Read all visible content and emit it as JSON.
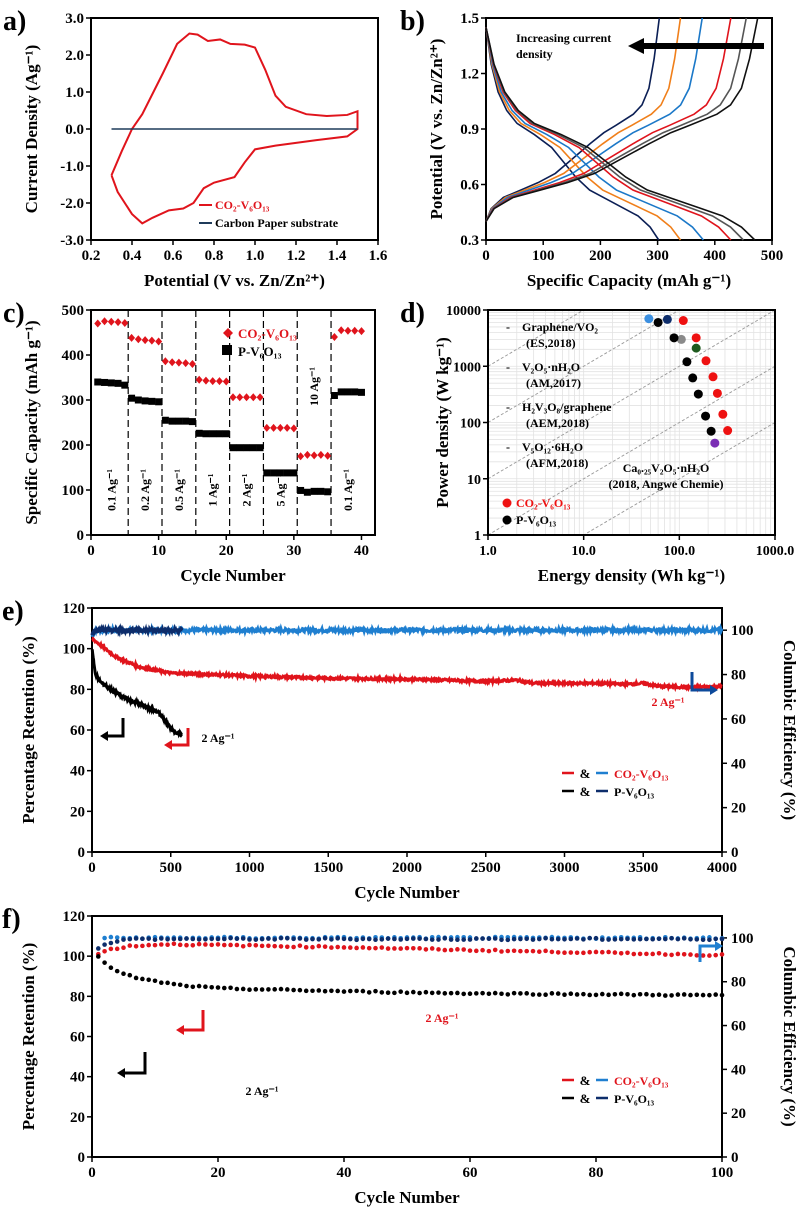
{
  "chart_data": [
    {
      "panel_label": "a)",
      "type": "line",
      "xlabel": "Potential (V vs. Zn/Zn²⁺)",
      "ylabel": "Current Density (Ag⁻¹)",
      "xlim": [
        0.2,
        1.6
      ],
      "ylim": [
        -3.0,
        3.0
      ],
      "xticks": [
        "0.2",
        "0.4",
        "0.6",
        "0.8",
        "1.0",
        "1.2",
        "1.4",
        "1.6"
      ],
      "yticks": [
        "-3.0",
        "-2.0",
        "-1.0",
        "0.0",
        "1.0",
        "2.0",
        "3.0"
      ],
      "series": [
        {
          "name": "CO₂-V₆O₁₃",
          "color": "#e0141c",
          "x": [
            0.3,
            0.35,
            0.4,
            0.45,
            0.55,
            0.62,
            0.68,
            0.72,
            0.77,
            0.83,
            0.88,
            0.95,
            1.0,
            1.05,
            1.1,
            1.15,
            1.25,
            1.35,
            1.45,
            1.5,
            1.5,
            1.45,
            1.3,
            1.1,
            1.0,
            0.95,
            0.9,
            0.8,
            0.75,
            0.7,
            0.65,
            0.58,
            0.5,
            0.45,
            0.4,
            0.33,
            0.3
          ],
          "y": [
            -1.25,
            -0.6,
            0.0,
            0.4,
            1.5,
            2.3,
            2.58,
            2.55,
            2.38,
            2.42,
            2.3,
            2.28,
            2.2,
            1.6,
            0.9,
            0.6,
            0.4,
            0.35,
            0.38,
            0.48,
            0.0,
            -0.2,
            -0.3,
            -0.45,
            -0.55,
            -0.9,
            -1.3,
            -1.45,
            -1.6,
            -2.0,
            -2.15,
            -2.2,
            -2.4,
            -2.55,
            -2.3,
            -1.7,
            -1.25
          ]
        },
        {
          "name": "Carbon Paper substrate",
          "color": "#1f3b5a",
          "x": [
            0.3,
            1.5
          ],
          "y": [
            0.0,
            0.0
          ]
        }
      ]
    },
    {
      "panel_label": "b)",
      "type": "line",
      "xlabel": "Specific Capacity (mAh g⁻¹)",
      "ylabel": "Potential (V vs. Zn/Zn²⁺)",
      "xlim": [
        0,
        500
      ],
      "ylim": [
        0.3,
        1.5
      ],
      "xticks": [
        "0",
        "100",
        "200",
        "300",
        "400",
        "500"
      ],
      "yticks": [
        "0.3",
        "0.6",
        "0.9",
        "1.2",
        "1.5"
      ],
      "annotation": "Increasing current",
      "annotation2": "density",
      "charge_profile": {
        "fraction": [
          0,
          0.03,
          0.1,
          0.2,
          0.3,
          0.4,
          0.5,
          0.6,
          0.68,
          0.75,
          0.85,
          0.9,
          0.94,
          0.97,
          1
        ],
        "voltage": [
          0.4,
          0.47,
          0.53,
          0.57,
          0.61,
          0.66,
          0.74,
          0.82,
          0.88,
          0.92,
          0.98,
          1.03,
          1.12,
          1.28,
          1.5
        ]
      },
      "discharge_profile": {
        "fraction": [
          0,
          0.03,
          0.07,
          0.12,
          0.18,
          0.28,
          0.38,
          0.45,
          0.52,
          0.6,
          0.7,
          0.8,
          0.88,
          0.95,
          1
        ],
        "voltage": [
          1.45,
          1.25,
          1.1,
          1.0,
          0.93,
          0.87,
          0.8,
          0.72,
          0.64,
          0.57,
          0.52,
          0.47,
          0.43,
          0.37,
          0.3
        ]
      },
      "series": [
        {
          "color": "#0b1f55",
          "charge_capacity": 303,
          "discharge_capacity": 302
        },
        {
          "color": "#f07f1a",
          "charge_capacity": 340,
          "discharge_capacity": 340
        },
        {
          "color": "#1b78c8",
          "charge_capacity": 378,
          "discharge_capacity": 380
        },
        {
          "color": "#e0141c",
          "charge_capacity": 428,
          "discharge_capacity": 428
        },
        {
          "color": "#555555",
          "charge_capacity": 455,
          "discharge_capacity": 450
        },
        {
          "color": "#111111",
          "charge_capacity": 475,
          "discharge_capacity": 470
        }
      ]
    },
    {
      "panel_label": "c)",
      "type": "scatter",
      "xlabel": "Cycle Number",
      "ylabel": "Specific Capacity (mAh g⁻¹)",
      "xlim": [
        0,
        42
      ],
      "ylim": [
        0,
        500
      ],
      "xticks": [
        "0",
        "10",
        "20",
        "30",
        "40"
      ],
      "yticks": [
        "0",
        "100",
        "200",
        "300",
        "400",
        "500"
      ],
      "rate_labels": [
        "0.1 Ag⁻¹",
        "0.2 Ag⁻¹",
        "0.5 Ag⁻¹",
        "1 Ag⁻¹",
        "2 Ag⁻¹",
        "5 Ag⁻¹",
        "10 Ag⁻¹",
        "0.1 Ag⁻¹"
      ],
      "dividers": [
        5.5,
        10.5,
        15.5,
        20.5,
        25.5,
        30.5,
        35.5
      ],
      "series": [
        {
          "name": "CO₂-V₆O₁₃",
          "color": "#e0141c",
          "marker": "diamond",
          "values": [
            470,
            475,
            474,
            473,
            471,
            438,
            435,
            433,
            432,
            430,
            386,
            384,
            383,
            382,
            380,
            345,
            343,
            342,
            342,
            341,
            306,
            306,
            306,
            306,
            306,
            238,
            238,
            238,
            238,
            237,
            175,
            178,
            177,
            178,
            176,
            440,
            455,
            454,
            454,
            453
          ]
        },
        {
          "name": "P-V₆O₁₃",
          "color": "#000000",
          "marker": "square",
          "values": [
            340,
            339,
            338,
            337,
            333,
            304,
            300,
            298,
            297,
            296,
            255,
            253,
            253,
            253,
            252,
            226,
            225,
            225,
            225,
            225,
            194,
            194,
            194,
            194,
            194,
            138,
            138,
            138,
            138,
            138,
            99,
            95,
            97,
            97,
            96,
            310,
            318,
            318,
            318,
            317
          ]
        }
      ]
    },
    {
      "panel_label": "d)",
      "type": "scatter",
      "xlabel": "Energy density (Wh kg⁻¹)",
      "ylabel": "Power density (W kg⁻¹)",
      "xscale": "log",
      "yscale": "log",
      "xlim": [
        1,
        1000
      ],
      "ylim": [
        1,
        10000
      ],
      "xticks": [
        "1.0",
        "10.0",
        "100.0",
        "1000.0"
      ],
      "yticks": [
        "1",
        "10",
        "100",
        "1000",
        "10000"
      ],
      "reference_ratios": [
        1000,
        100,
        10,
        1,
        0.1
      ],
      "literature_labels": [
        {
          "dash": "-",
          "name": "Graphene/VO₂",
          "ref": "(ES,2018)"
        },
        {
          "dash": "-",
          "name": "V₂O₅·nH₂O",
          "ref": "(AM,2017)"
        },
        {
          "dash": "-",
          "name": "H₂V₃O₈/graphene",
          "ref": "(AEM,2018)"
        },
        {
          "dash": "-",
          "name": "V₅O₁₂·6H₂O",
          "ref": "(AFM,2018)"
        }
      ],
      "ca_label": "Ca₀.₂₅V₂O₅·nH₂O",
      "ca_ref": "(2018, Angwe Chemie)",
      "series": [
        {
          "name": "CO₂-V₆O₁₃",
          "color": "#ee1111",
          "energy": [
            110,
            150,
            190,
            225,
            250,
            285,
            320
          ],
          "power": [
            6500,
            3200,
            1250,
            650,
            330,
            140,
            72
          ]
        },
        {
          "name": "P-V₆O₁₃",
          "color": "#000000",
          "energy": [
            60,
            88,
            120,
            138,
            158,
            188,
            215
          ],
          "power": [
            6000,
            3200,
            1200,
            620,
            320,
            130,
            70
          ]
        }
      ],
      "literature_points": [
        {
          "color": "#3b8fe0",
          "energy": 48,
          "power": 7000
        },
        {
          "color": "#0d2d6b",
          "energy": 75,
          "power": 6800
        },
        {
          "color": "#8a8a8a",
          "energy": 105,
          "power": 3000
        },
        {
          "color": "#1e5a1e",
          "energy": 150,
          "power": 2100
        },
        {
          "color": "#7b2fb5",
          "energy": 235,
          "power": 43
        }
      ]
    },
    {
      "panel_label": "e)",
      "type": "line",
      "xlabel": "Cycle Number",
      "ylabel": "Percentage Retention (%)",
      "y2label": "Columbic Efficiency (%)",
      "xlim": [
        0,
        4000
      ],
      "ylim": [
        0,
        120
      ],
      "y2lim": [
        0,
        110
      ],
      "xticks": [
        "0",
        "500",
        "1000",
        "1500",
        "2000",
        "2500",
        "3000",
        "3500",
        "4000"
      ],
      "yticks": [
        "0",
        "20",
        "40",
        "60",
        "80",
        "100",
        "120"
      ],
      "y2ticks": [
        "0",
        "20",
        "40",
        "60",
        "80",
        "100"
      ],
      "annotation_red": "2 Ag⁻¹",
      "annotation_black": "2 Ag⁻¹",
      "legend": [
        {
          "amp": "&",
          "label": "CO₂-V₆O₁₃",
          "color1": "#e0141c",
          "color2": "#1f7fd0"
        },
        {
          "amp": "&",
          "label": "P-V₆O₁₃",
          "color1": "#000000",
          "color2": "#0d2d6b"
        }
      ],
      "series": [
        {
          "name": "CO₂-V₆O₁₃ CE",
          "axis": "right",
          "color": "#1f7fd0",
          "x": [
            0,
            20,
            4000
          ],
          "y": [
            97,
            100,
            100
          ]
        },
        {
          "name": "P-V₆O₁₃ CE",
          "axis": "right",
          "color": "#0d2d6b",
          "x": [
            0,
            20,
            570
          ],
          "y": [
            98,
            100,
            100
          ]
        },
        {
          "name": "CO₂-V₆O₁₃ retention",
          "axis": "left",
          "color": "#e0141c",
          "x": [
            0,
            50,
            150,
            300,
            500,
            700,
            1000,
            1500,
            2000,
            2500,
            2700,
            2800,
            3200,
            3400,
            3500,
            3600,
            3800,
            4000
          ],
          "y": [
            105,
            102,
            96,
            91,
            88,
            87.5,
            86.5,
            85.5,
            85,
            84,
            84.5,
            83,
            83,
            82.5,
            83,
            81.5,
            81,
            81.5
          ]
        },
        {
          "name": "P-V₆O₁₃ retention",
          "axis": "left",
          "color": "#000000",
          "x": [
            0,
            20,
            50,
            100,
            200,
            300,
            350,
            420,
            470,
            520,
            570
          ],
          "y": [
            100,
            88,
            84,
            81,
            76,
            73,
            71,
            69,
            64,
            59,
            58
          ]
        }
      ]
    },
    {
      "panel_label": "f)",
      "type": "scatter",
      "xlabel": "Cycle Number",
      "ylabel": "Percentage Retention (%)",
      "y2label": "Columbic Efficiency (%)",
      "xlim": [
        0,
        100
      ],
      "ylim": [
        0,
        120
      ],
      "y2lim": [
        0,
        110
      ],
      "xticks": [
        "0",
        "20",
        "40",
        "60",
        "80",
        "100"
      ],
      "yticks": [
        "0",
        "20",
        "40",
        "60",
        "80",
        "100",
        "120"
      ],
      "y2ticks": [
        "0",
        "20",
        "40",
        "60",
        "80",
        "100"
      ],
      "annotation_red": "2 Ag⁻¹",
      "annotation_black": "2 Ag⁻¹",
      "legend": [
        {
          "amp": "&",
          "label": "CO₂-V₆O₁₃",
          "color1": "#e0141c",
          "color2": "#1f7fd0"
        },
        {
          "amp": "&",
          "label": "P-V₆O₁₃",
          "color1": "#000000",
          "color2": "#0d2d6b"
        }
      ],
      "series": [
        {
          "name": "CO₂-V₆O₁₃ CE",
          "axis": "right",
          "color": "#1f7fd0",
          "x": [
            2,
            100
          ],
          "y": [
            100,
            100
          ]
        },
        {
          "name": "P-V₆O₁₃ CE",
          "axis": "right",
          "color": "#0d2d6b",
          "x": [
            1,
            3,
            6,
            100
          ],
          "y": [
            95.5,
            98,
            99.5,
            99.5
          ]
        },
        {
          "name": "CO₂-V₆O₁₃ retention",
          "axis": "left",
          "color": "#e0141c",
          "x": [
            1,
            3,
            6,
            12,
            20,
            40,
            60,
            80,
            100
          ],
          "y": [
            101,
            103.5,
            105,
            106,
            105.5,
            104.5,
            103,
            101.8,
            100.5
          ]
        },
        {
          "name": "P-V₆O₁₃ retention",
          "axis": "left",
          "color": "#000000",
          "x": [
            1,
            2,
            3,
            5,
            8,
            14,
            20,
            40,
            60,
            100
          ],
          "y": [
            100,
            97,
            94,
            91,
            88.5,
            85.5,
            84,
            82.5,
            81.5,
            80.5
          ]
        }
      ]
    }
  ]
}
